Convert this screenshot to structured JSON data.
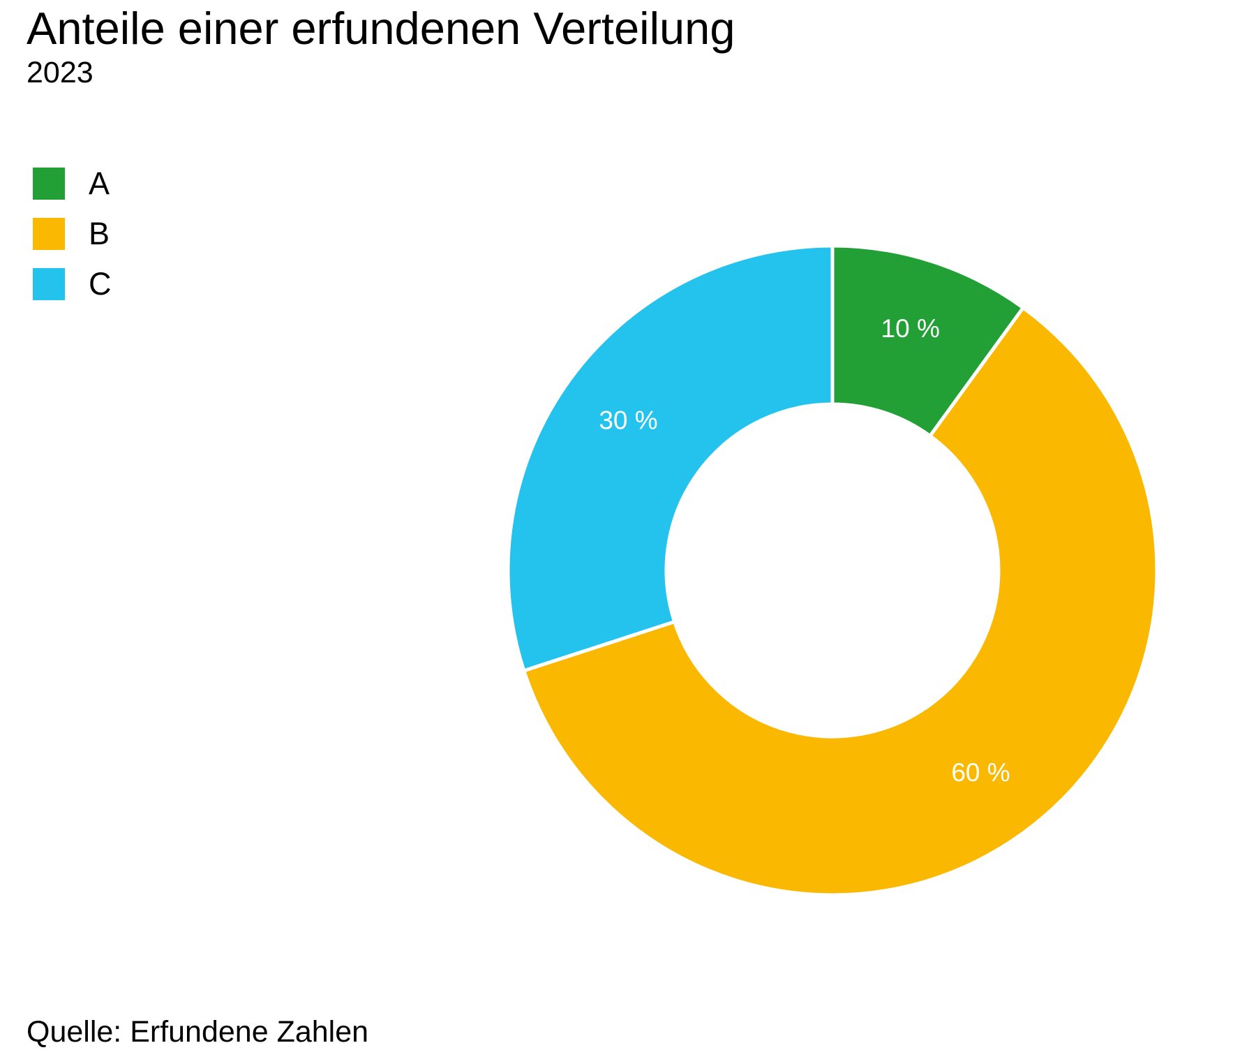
{
  "chart_data": {
    "type": "pie",
    "title": "Anteile einer erfundenen Verteilung",
    "subtitle": "2023",
    "caption": "Quelle: Erfundene Zahlen",
    "legend_position": "top-left",
    "categories": [
      "A",
      "B",
      "C"
    ],
    "values": [
      10,
      60,
      30
    ],
    "data_labels": [
      "10 %",
      "60 %",
      "30 %"
    ],
    "colors": [
      "#22A036",
      "#FAB800",
      "#24C3EE"
    ],
    "style": "donut",
    "label_color": "#FFFFFF"
  }
}
